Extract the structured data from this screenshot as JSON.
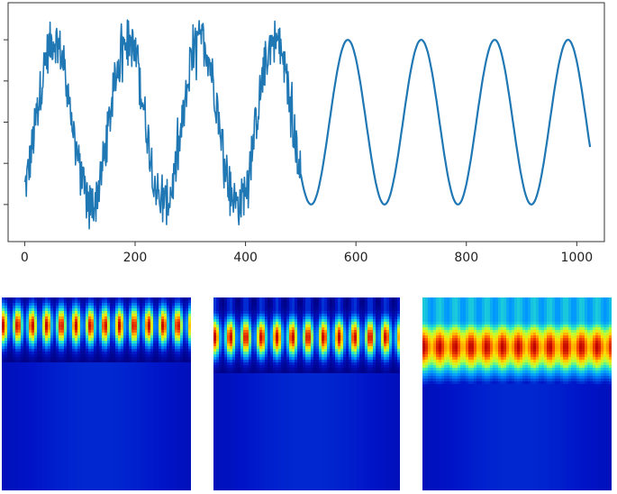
{
  "chart_data": [
    {
      "type": "line",
      "title": "",
      "xlabel": "",
      "ylabel": "",
      "xlim": [
        -30,
        1050
      ],
      "ylim": [
        -1.45,
        1.45
      ],
      "x_ticks": [
        0,
        200,
        400,
        600,
        800,
        1000
      ],
      "x_tick_labels": [
        "0",
        "200",
        "400",
        "600",
        "800",
        "1000"
      ],
      "y_ticks": [
        -1.0,
        -0.5,
        0.0,
        0.5,
        1.0
      ],
      "y_tick_labels": [
        "",
        "",
        "",
        "",
        ""
      ],
      "grid": false,
      "series": [
        {
          "color": "#1f77b4",
          "segments": [
            {
              "x_range": [
                0,
                500
              ],
              "form": "sine",
              "period": 133,
              "amplitude": 1.0,
              "noise": "high"
            },
            {
              "x_range": [
                500,
                1024
              ],
              "form": "sine",
              "period": 133,
              "amplitude": 1.0,
              "noise": "none"
            }
          ]
        }
      ]
    },
    {
      "type": "heatmap",
      "colormap": "jet",
      "description_values": {
        "bands": 13,
        "band_center_row_fraction": 0.14,
        "peak_intensity": 1.0
      }
    },
    {
      "type": "heatmap",
      "colormap": "jet",
      "description_values": {
        "bands": 12,
        "band_center_row_fraction": 0.2,
        "peak_intensity": 1.0
      }
    },
    {
      "type": "heatmap",
      "colormap": "jet",
      "description_values": {
        "bands": 12,
        "band_center_row_fraction": 0.25,
        "peak_intensity": 1.0
      }
    }
  ]
}
